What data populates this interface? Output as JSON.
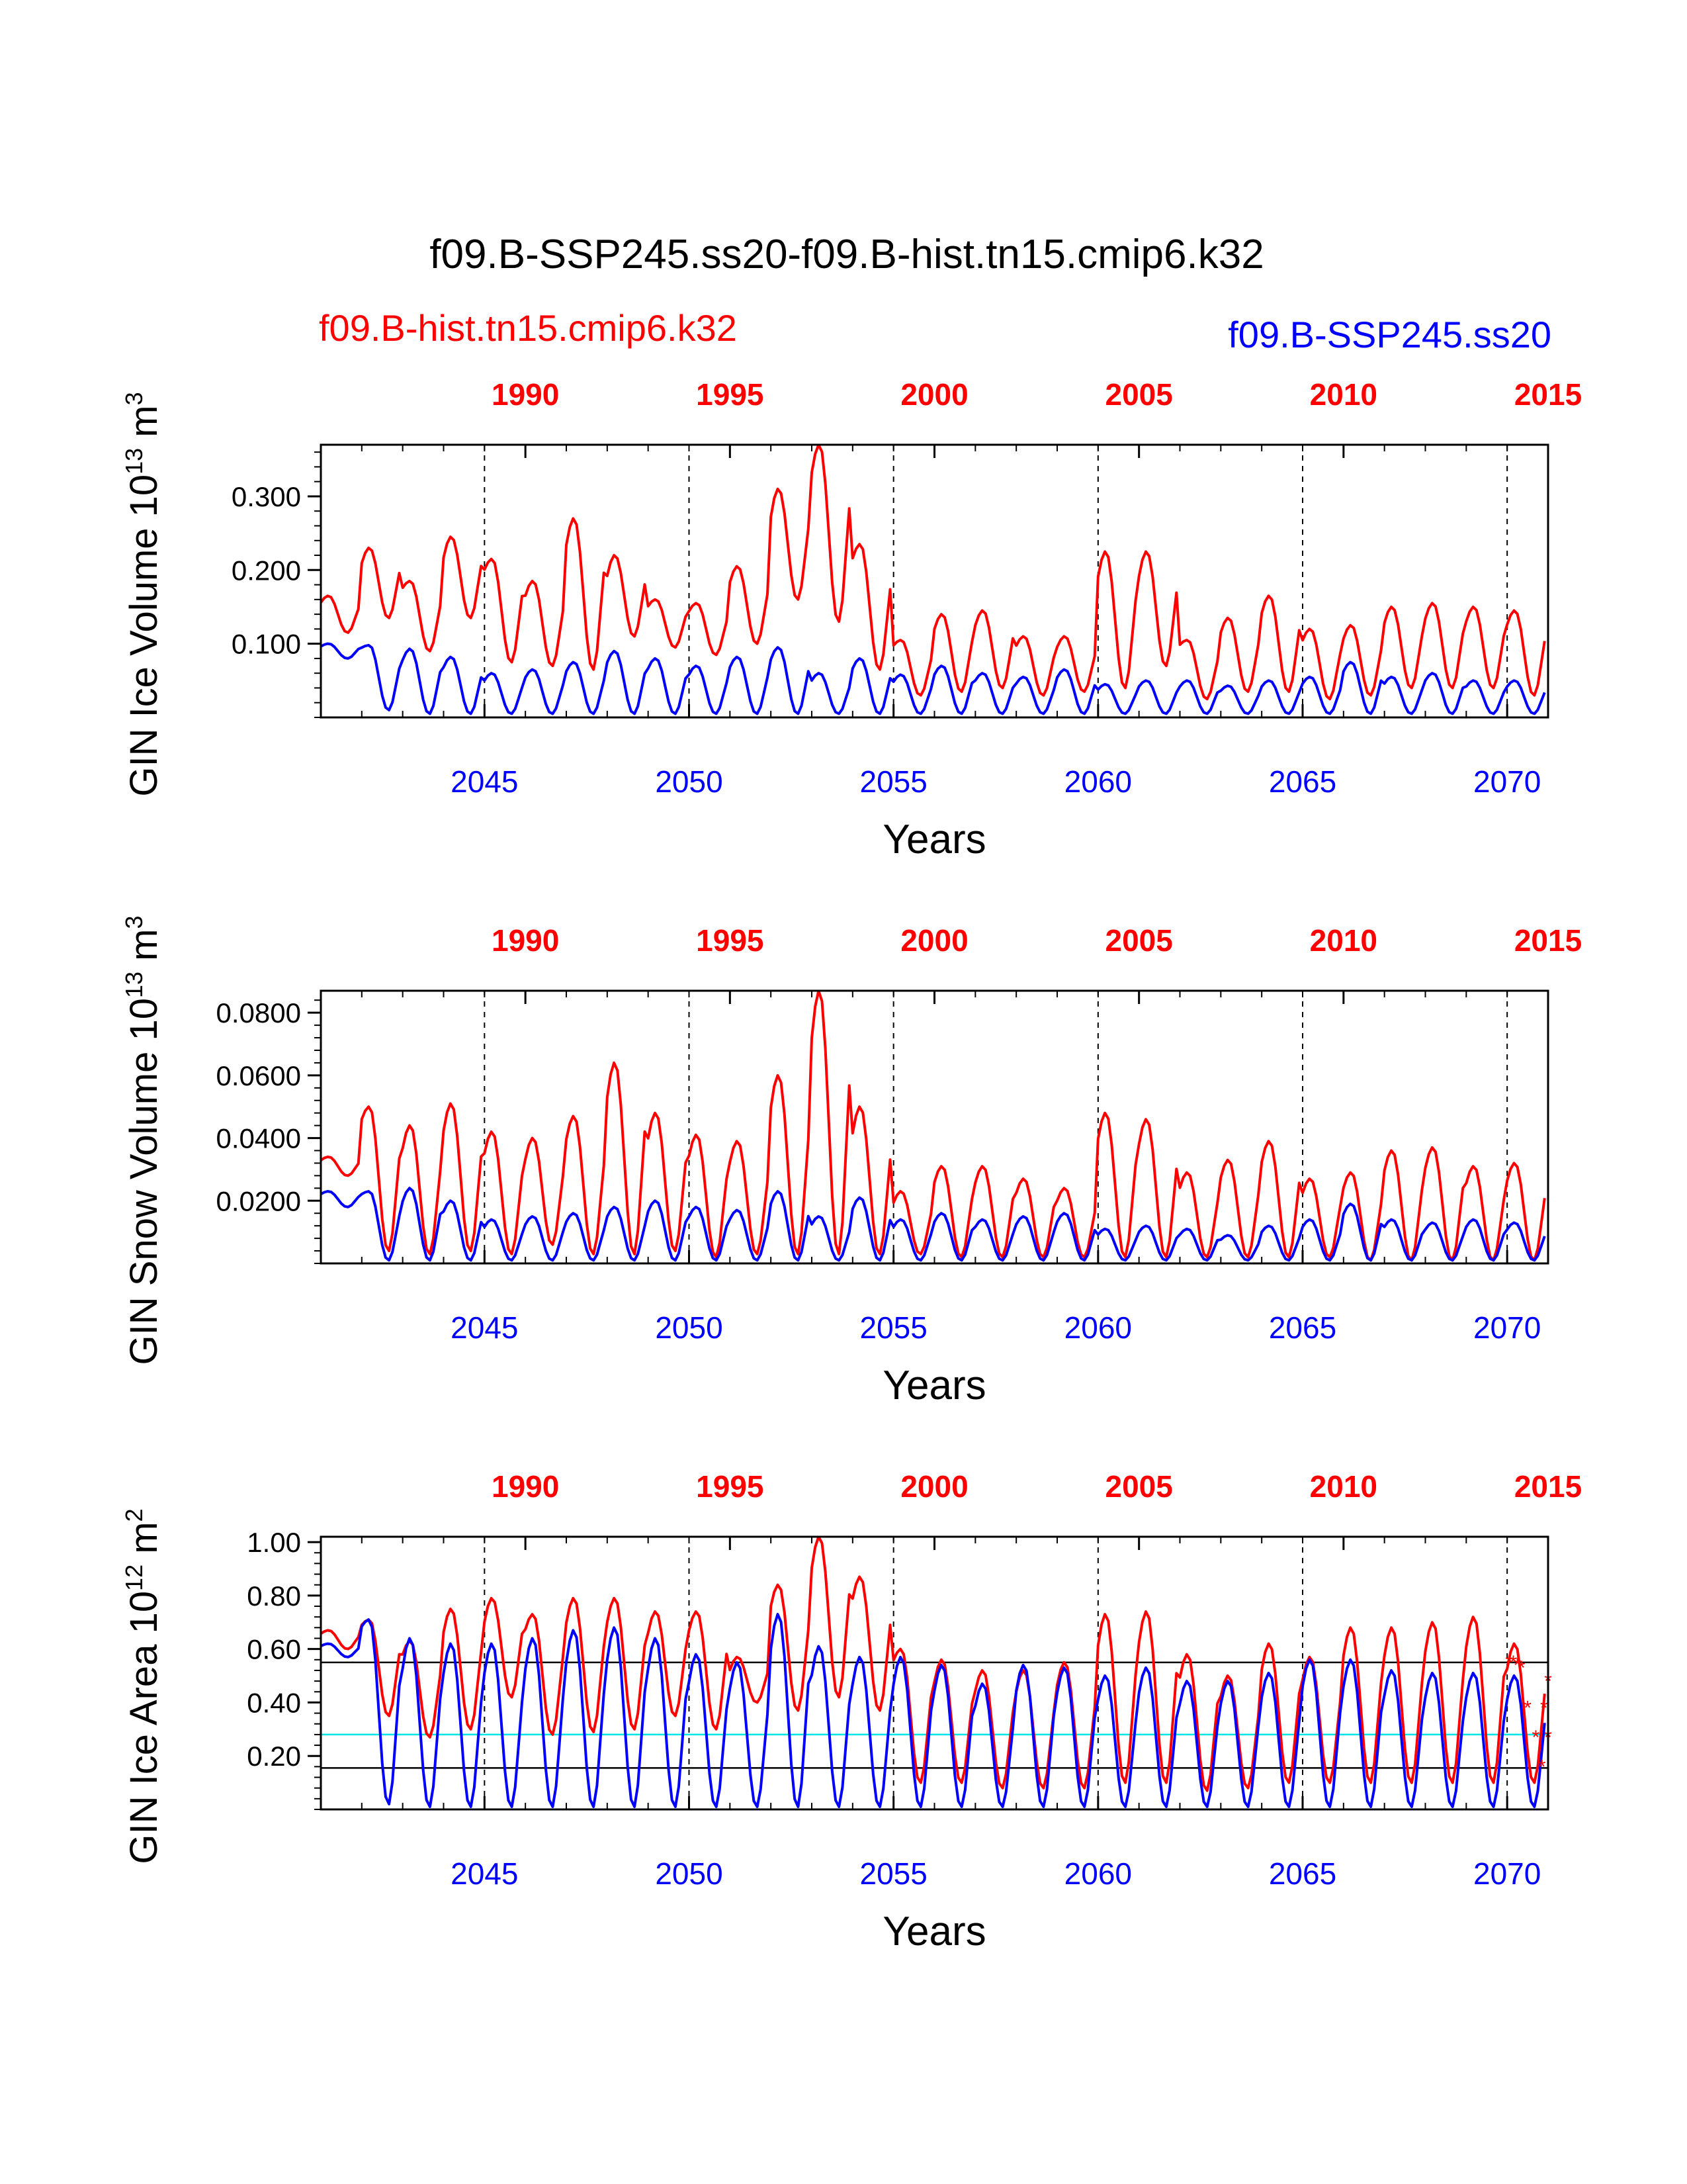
{
  "title": "f09.B-SSP245.ss20-f09.B-hist.tn15.cmip6.k32",
  "legend": {
    "left_label": "f09.B-hist.tn15.cmip6.k32",
    "right_label": "f09.B-SSP245.ss20"
  },
  "colors": {
    "hist": "#ff0000",
    "ssp": "#0000ff",
    "obs_line": "#00e5e5",
    "ref_lines": "#000000"
  },
  "chart_data": [
    {
      "type": "line",
      "ylabel_main": "GIN Ice Volume 10",
      "ylabel_exp": "13",
      "ylabel_unit": " m",
      "ylabel_unit_exp": "3",
      "xlabel": "Years",
      "xlim": [
        2041,
        2071
      ],
      "ylim": [
        0,
        0.37
      ],
      "yticks": [
        0.1,
        0.2,
        0.3
      ],
      "ytick_labels": [
        "0.100",
        "0.200",
        "0.300"
      ],
      "bottom_axis_ticks": [
        2045,
        2050,
        2055,
        2060,
        2065,
        2070
      ],
      "bottom_axis_labels": [
        "2045",
        "2050",
        "2055",
        "2060",
        "2065",
        "2070"
      ],
      "top_axis_ticks": [
        2046,
        2051,
        2056,
        2061,
        2066,
        2071
      ],
      "top_axis_labels": [
        "1990",
        "1995",
        "2000",
        "2005",
        "2010",
        "2015"
      ],
      "vlines": [
        2045,
        2050,
        2055,
        2060,
        2065,
        2070
      ],
      "series": [
        {
          "name": "f09.B-hist.tn15.cmip6.k32",
          "color": "#ff0000",
          "max": [
            0.165,
            0.23,
            0.185,
            0.245,
            0.215,
            0.185,
            0.27,
            0.22,
            0.16,
            0.155,
            0.205,
            0.31,
            0.37,
            0.235,
            0.105,
            0.14,
            0.145,
            0.11,
            0.11,
            0.225,
            0.225,
            0.105,
            0.135,
            0.165,
            0.12,
            0.125,
            0.15,
            0.155,
            0.15,
            0.145
          ],
          "min": [
            0.115,
            0.135,
            0.09,
            0.135,
            0.075,
            0.07,
            0.065,
            0.11,
            0.095,
            0.085,
            0.1,
            0.16,
            0.13,
            0.065,
            0.03,
            0.035,
            0.04,
            0.03,
            0.035,
            0.04,
            0.07,
            0.025,
            0.035,
            0.035,
            0.025,
            0.03,
            0.04,
            0.04,
            0.04,
            0.03
          ]
        },
        {
          "name": "f09.B-SSP245.ss20",
          "color": "#0000ff",
          "max": [
            0.1,
            0.098,
            0.093,
            0.082,
            0.06,
            0.065,
            0.075,
            0.09,
            0.08,
            0.07,
            0.082,
            0.095,
            0.06,
            0.08,
            0.058,
            0.07,
            0.06,
            0.055,
            0.065,
            0.045,
            0.05,
            0.05,
            0.043,
            0.05,
            0.055,
            0.075,
            0.055,
            0.06,
            0.05,
            0.05
          ],
          "min": [
            0.08,
            0.01,
            0.005,
            0.005,
            0.005,
            0.005,
            0.005,
            0.005,
            0.005,
            0.005,
            0.005,
            0.005,
            0.005,
            0.005,
            0.005,
            0.005,
            0.005,
            0.005,
            0.005,
            0.005,
            0.005,
            0.005,
            0.005,
            0.005,
            0.005,
            0.005,
            0.005,
            0.005,
            0.005,
            0.005
          ]
        }
      ]
    },
    {
      "type": "line",
      "ylabel_main": "GIN Snow Volume 10",
      "ylabel_exp": "13",
      "ylabel_unit": " m",
      "ylabel_unit_exp": "3",
      "xlabel": "Years",
      "xlim": [
        2041,
        2071
      ],
      "ylim": [
        0,
        0.087
      ],
      "yticks": [
        0.02,
        0.04,
        0.06,
        0.08
      ],
      "ytick_labels": [
        "0.0200",
        "0.0400",
        "0.0600",
        "0.0800"
      ],
      "bottom_axis_ticks": [
        2045,
        2050,
        2055,
        2060,
        2065,
        2070
      ],
      "bottom_axis_labels": [
        "2045",
        "2050",
        "2055",
        "2060",
        "2065",
        "2070"
      ],
      "top_axis_ticks": [
        2046,
        2051,
        2056,
        2061,
        2066,
        2071
      ],
      "top_axis_labels": [
        "1990",
        "1995",
        "2000",
        "2005",
        "2010",
        "2015"
      ],
      "vlines": [
        2045,
        2050,
        2055,
        2060,
        2065,
        2070
      ],
      "series": [
        {
          "name": "f09.B-hist.tn15.cmip6.k32",
          "color": "#ff0000",
          "max": [
            0.034,
            0.05,
            0.044,
            0.051,
            0.042,
            0.04,
            0.047,
            0.064,
            0.048,
            0.041,
            0.039,
            0.06,
            0.087,
            0.05,
            0.023,
            0.031,
            0.031,
            0.027,
            0.024,
            0.048,
            0.046,
            0.029,
            0.033,
            0.039,
            0.027,
            0.029,
            0.036,
            0.037,
            0.031,
            0.032
          ],
          "min": [
            0.028,
            0.004,
            0.003,
            0.004,
            0.003,
            0.006,
            0.003,
            0.003,
            0.004,
            0.002,
            0.003,
            0.003,
            0.003,
            0.003,
            0.003,
            0.002,
            0.002,
            0.002,
            0.002,
            0.002,
            0.002,
            0.002,
            0.002,
            0.002,
            0.002,
            0.001,
            0.001,
            0.001,
            0.001,
            0.001
          ]
        },
        {
          "name": "f09.B-SSP245.ss20",
          "color": "#0000ff",
          "max": [
            0.023,
            0.023,
            0.024,
            0.02,
            0.014,
            0.015,
            0.016,
            0.018,
            0.02,
            0.018,
            0.017,
            0.023,
            0.015,
            0.021,
            0.014,
            0.016,
            0.014,
            0.015,
            0.016,
            0.011,
            0.012,
            0.011,
            0.009,
            0.012,
            0.014,
            0.019,
            0.014,
            0.013,
            0.014,
            0.013
          ],
          "min": [
            0.018,
            0.001,
            0.001,
            0.001,
            0.001,
            0.001,
            0.001,
            0.001,
            0.001,
            0.001,
            0.001,
            0.001,
            0.001,
            0.001,
            0.001,
            0.001,
            0.001,
            0.001,
            0.001,
            0.001,
            0.001,
            0.001,
            0.001,
            0.001,
            0.001,
            0.001,
            0.001,
            0.001,
            0.001,
            0.001
          ]
        }
      ]
    },
    {
      "type": "line",
      "ylabel_main": "GIN Ice Area 10",
      "ylabel_exp": "12",
      "ylabel_unit": " m",
      "ylabel_unit_exp": "2",
      "xlabel": "Years",
      "xlim": [
        2041,
        2071
      ],
      "ylim": [
        0,
        1.02
      ],
      "yticks": [
        0.2,
        0.4,
        0.6,
        0.8,
        1.0
      ],
      "ytick_labels": [
        "0.20",
        "0.40",
        "0.60",
        "0.80",
        "1.00"
      ],
      "bottom_axis_ticks": [
        2045,
        2050,
        2055,
        2060,
        2065,
        2070
      ],
      "bottom_axis_labels": [
        "2045",
        "2050",
        "2055",
        "2060",
        "2065",
        "2070"
      ],
      "top_axis_ticks": [
        2046,
        2051,
        2056,
        2061,
        2066,
        2071
      ],
      "top_axis_labels": [
        "1990",
        "1995",
        "2000",
        "2005",
        "2010",
        "2015"
      ],
      "vlines": [
        2045,
        2050,
        2055,
        2060,
        2065,
        2070
      ],
      "hlines": [
        {
          "y": 0.55,
          "color": "#000000"
        },
        {
          "y": 0.28,
          "color": "#00e5e5"
        },
        {
          "y": 0.155,
          "color": "#000000"
        }
      ],
      "series": [
        {
          "name": "f09.B-hist.tn15.cmip6.k32",
          "color": "#ff0000",
          "max": [
            0.67,
            0.71,
            0.63,
            0.75,
            0.79,
            0.73,
            0.79,
            0.79,
            0.74,
            0.74,
            0.57,
            0.84,
            1.02,
            0.87,
            0.6,
            0.56,
            0.52,
            0.52,
            0.55,
            0.73,
            0.74,
            0.58,
            0.5,
            0.62,
            0.57,
            0.68,
            0.68,
            0.7,
            0.72,
            0.62
          ],
          "min": [
            0.6,
            0.35,
            0.27,
            0.3,
            0.42,
            0.28,
            0.29,
            0.3,
            0.35,
            0.3,
            0.4,
            0.37,
            0.42,
            0.37,
            0.1,
            0.1,
            0.08,
            0.08,
            0.08,
            0.1,
            0.1,
            0.07,
            0.08,
            0.1,
            0.1,
            0.1,
            0.1,
            0.1,
            0.1,
            0.1
          ]
        },
        {
          "name": "f09.B-SSP245.ss20",
          "color": "#0000ff",
          "max": [
            0.62,
            0.71,
            0.64,
            0.62,
            0.62,
            0.64,
            0.67,
            0.68,
            0.64,
            0.58,
            0.55,
            0.73,
            0.61,
            0.57,
            0.57,
            0.54,
            0.47,
            0.54,
            0.53,
            0.5,
            0.53,
            0.48,
            0.48,
            0.51,
            0.56,
            0.56,
            0.52,
            0.51,
            0.51,
            0.5
          ],
          "min": [
            0.57,
            0.02,
            0.01,
            0.01,
            0.01,
            0.01,
            0.01,
            0.01,
            0.01,
            0.01,
            0.01,
            0.01,
            0.01,
            0.01,
            0.01,
            0.01,
            0.01,
            0.01,
            0.01,
            0.01,
            0.01,
            0.01,
            0.01,
            0.01,
            0.01,
            0.01,
            0.01,
            0.01,
            0.01,
            0.01
          ]
        }
      ],
      "markers": {
        "symbol": "*",
        "color": "#ff0000",
        "points": [
          {
            "x": 2070.05,
            "y": 0.55
          },
          {
            "x": 2070.15,
            "y": 0.55
          },
          {
            "x": 2070.25,
            "y": 0.54
          },
          {
            "x": 2070.35,
            "y": 0.53
          },
          {
            "x": 2070.5,
            "y": 0.38
          },
          {
            "x": 2070.7,
            "y": 0.27
          },
          {
            "x": 2070.85,
            "y": 0.16
          },
          {
            "x": 2071.0,
            "y": 0.27
          },
          {
            "x": 2070.9,
            "y": 0.38
          },
          {
            "x": 2071.0,
            "y": 0.48
          }
        ]
      }
    }
  ]
}
